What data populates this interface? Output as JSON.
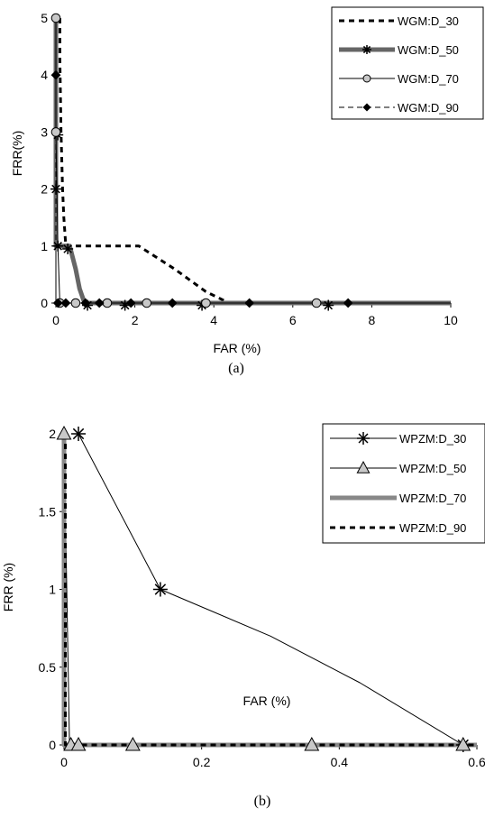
{
  "chart_data": [
    {
      "type": "line",
      "caption": "(a)",
      "xlabel": "FAR (%)",
      "ylabel": "FRR(%)",
      "xlim": [
        0,
        10
      ],
      "ylim": [
        0,
        5
      ],
      "xticks": [
        0,
        2,
        4,
        6,
        8,
        10
      ],
      "yticks": [
        0,
        1,
        2,
        3,
        4,
        5
      ],
      "grid": false,
      "legend_position": "top-right",
      "series": [
        {
          "name": "WGM:D_30",
          "style": "dashed",
          "color": "#000000",
          "marker": "none",
          "points": [
            [
              0.1,
              5
            ],
            [
              0.1,
              4.3
            ],
            [
              0.13,
              3
            ],
            [
              0.17,
              2
            ],
            [
              0.2,
              1.5
            ],
            [
              0.25,
              1
            ],
            [
              2.1,
              1
            ],
            [
              3.0,
              0.6
            ],
            [
              3.8,
              0.2
            ],
            [
              4.3,
              0.03
            ],
            [
              4.4,
              0
            ],
            [
              10,
              0
            ]
          ]
        },
        {
          "name": "WGM:D_50",
          "style": "thick",
          "color": "#666666",
          "marker": "asterisk",
          "points": [
            [
              0,
              5
            ],
            [
              0,
              1
            ],
            [
              0.35,
              1
            ],
            [
              0.5,
              0.6
            ],
            [
              0.6,
              0.25
            ],
            [
              0.7,
              0.05
            ],
            [
              0.8,
              0
            ],
            [
              10,
              0
            ]
          ],
          "marker_points": [
            [
              0.05,
              2.95
            ],
            [
              0,
              2
            ],
            [
              0.05,
              1
            ],
            [
              0.3,
              0.95
            ],
            [
              0.8,
              -0.04
            ],
            [
              1.75,
              -0.04
            ],
            [
              3.7,
              -0.04
            ],
            [
              6.9,
              -0.04
            ]
          ]
        },
        {
          "name": "WGM:D_70",
          "style": "solid",
          "color": "#000000",
          "marker": "circle",
          "points": [
            [
              0,
              5
            ],
            [
              0,
              3
            ],
            [
              0.05,
              1
            ],
            [
              0.1,
              0
            ],
            [
              10,
              0
            ]
          ],
          "marker_points": [
            [
              0,
              5
            ],
            [
              0,
              3
            ],
            [
              0.1,
              0
            ],
            [
              0.5,
              0
            ],
            [
              1.3,
              0
            ],
            [
              2.3,
              0
            ],
            [
              3.8,
              0
            ],
            [
              6.6,
              0
            ]
          ]
        },
        {
          "name": "WGM:D_90",
          "style": "dashed-thin",
          "color": "#000000",
          "marker": "diamond",
          "points": [
            [
              0,
              5
            ],
            [
              0,
              4
            ],
            [
              0,
              0
            ],
            [
              10,
              0
            ]
          ],
          "marker_points": [
            [
              0,
              4
            ],
            [
              0.05,
              0
            ],
            [
              0.25,
              0
            ],
            [
              0.75,
              0
            ],
            [
              1.1,
              0
            ],
            [
              1.9,
              0
            ],
            [
              2.95,
              0
            ],
            [
              4.9,
              0
            ],
            [
              7.4,
              0
            ]
          ]
        }
      ]
    },
    {
      "type": "line",
      "caption": "(b)",
      "xlabel": "FAR (%)",
      "ylabel": "FRR (%)",
      "xlim": [
        0,
        0.6
      ],
      "ylim": [
        0,
        2
      ],
      "xticks": [
        0,
        0.2,
        0.4,
        0.6
      ],
      "yticks": [
        0,
        0.5,
        1,
        1.5,
        2
      ],
      "grid": false,
      "legend_position": "top-right",
      "series": [
        {
          "name": "WPZM:D_30",
          "style": "solid",
          "color": "#000000",
          "marker": "asterisk",
          "points": [
            [
              0.021,
              2
            ],
            [
              0.14,
              1
            ],
            [
              0.3,
              0.7
            ],
            [
              0.43,
              0.4
            ],
            [
              0.58,
              0
            ]
          ],
          "marker_points": [
            [
              0.021,
              2
            ],
            [
              0.14,
              1
            ],
            [
              0.58,
              0
            ]
          ]
        },
        {
          "name": "WPZM:D_50",
          "style": "solid",
          "color": "#000000",
          "marker": "triangle",
          "points": [
            [
              0,
              2
            ],
            [
              0.008,
              0
            ],
            [
              0.6,
              0
            ]
          ],
          "marker_points": [
            [
              0,
              2
            ],
            [
              0.01,
              0
            ],
            [
              0.021,
              0
            ],
            [
              0.1,
              0
            ],
            [
              0.36,
              0
            ],
            [
              0.58,
              0
            ]
          ]
        },
        {
          "name": "WPZM:D_70",
          "style": "thick",
          "color": "#888888",
          "marker": "none",
          "points": [
            [
              0,
              2
            ],
            [
              0,
              0
            ],
            [
              0.6,
              0
            ]
          ]
        },
        {
          "name": "WPZM:D_90",
          "style": "dashed",
          "color": "#000000",
          "marker": "none",
          "points": [
            [
              0.002,
              2
            ],
            [
              0.002,
              0
            ],
            [
              0.6,
              0
            ]
          ]
        }
      ]
    }
  ]
}
